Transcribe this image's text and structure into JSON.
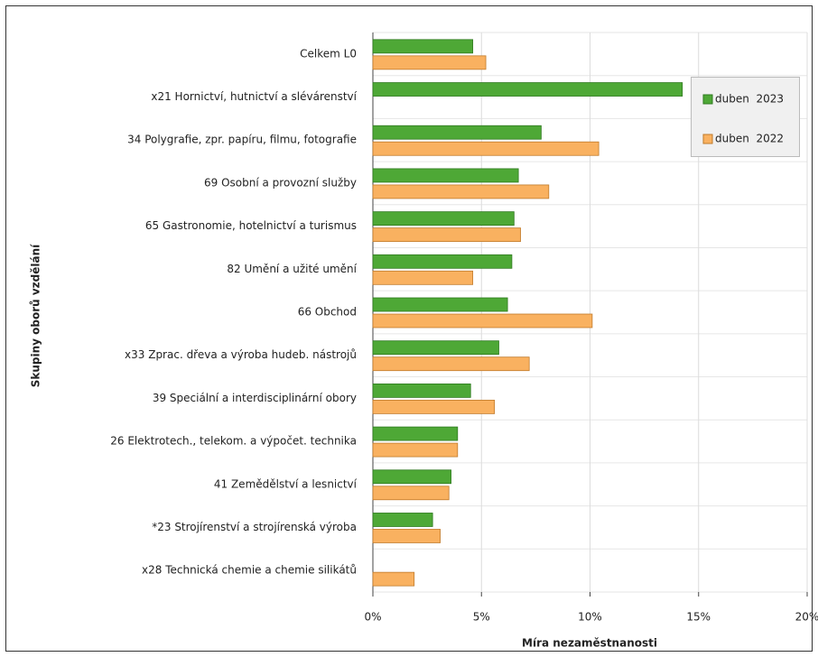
{
  "chart_data": {
    "type": "bar",
    "orientation": "horizontal",
    "x_label": "Míra nezaměstnanosti",
    "y_label": "Skupiny oborů vzdělání",
    "categories": [
      "Celkem L0",
      "x21 Hornictví, hutnictví a slévárenství",
      "34 Polygrafie, zpr. papíru, filmu, fotografie",
      "69 Osobní a provozní služby",
      "65 Gastronomie, hotelnictví a turismus",
      "82 Umění a užité umění",
      "66 Obchod",
      "x33 Zprac. dřeva a výroba hudeb. nástrojů",
      "39 Speciální a interdisciplinární obory",
      "26 Elektrotech., telekom. a výpočet. technika",
      "41 Zemědělství a lesnictví",
      "*23 Strojírenství a strojírenská výroba",
      "x28 Technická chemie a chemie silikátů"
    ],
    "series": [
      {
        "name": "duben  2023",
        "color": "#4ea836",
        "values": [
          4.6,
          14.25,
          7.75,
          6.7,
          6.5,
          6.4,
          6.2,
          5.8,
          4.5,
          3.9,
          3.6,
          2.75,
          null
        ]
      },
      {
        "name": "duben  2022",
        "color": "#f9b160",
        "values": [
          5.2,
          null,
          10.4,
          8.1,
          6.8,
          4.6,
          10.1,
          7.2,
          5.6,
          3.9,
          3.5,
          3.1,
          1.9
        ]
      }
    ],
    "xlim": [
      0,
      20
    ],
    "xticks": [
      {
        "value": 0,
        "label": "0%"
      },
      {
        "value": 5,
        "label": "5%"
      },
      {
        "value": 10,
        "label": "10%"
      },
      {
        "value": 15,
        "label": "15%"
      },
      {
        "value": 20,
        "label": "20%"
      }
    ],
    "grid": true,
    "legend": "upper right"
  }
}
